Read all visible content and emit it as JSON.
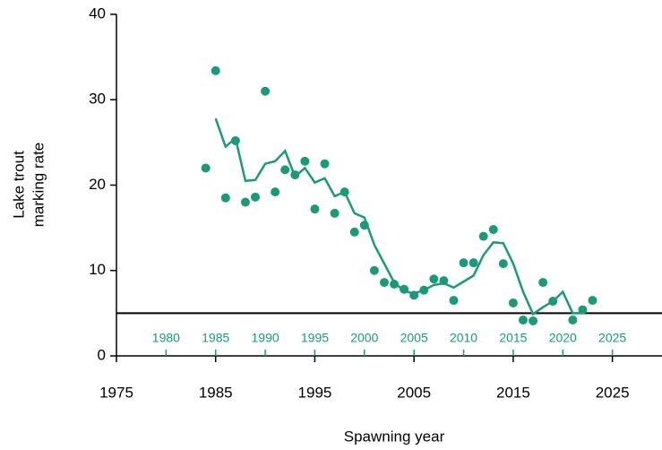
{
  "chart_data": {
    "type": "scatter",
    "xlabel": "Spawning year",
    "ylabel": [
      "Lake trout",
      "marking rate"
    ],
    "xlim": [
      1975,
      2030
    ],
    "ylim": [
      0,
      40
    ],
    "xticks": [
      1975,
      1985,
      1995,
      2005,
      2015,
      2025
    ],
    "xticks_minor": [
      1980,
      1985,
      1990,
      1995,
      2000,
      2005,
      2010,
      2015,
      2020,
      2025
    ],
    "xticks_minor_color": "#1a9a78",
    "yticks": [
      0,
      10,
      20,
      30,
      40
    ],
    "reference_line": 5,
    "series": [
      {
        "type": "scatter",
        "color": "#1a9a78",
        "x": [
          1984,
          1985,
          1986,
          1987,
          1988,
          1989,
          1990,
          1991,
          1992,
          1993,
          1994,
          1995,
          1996,
          1997,
          1998,
          1999,
          2000,
          2001,
          2002,
          2003,
          2004,
          2005,
          2006,
          2007,
          2008,
          2009,
          2010,
          2011,
          2012,
          2013,
          2014,
          2015,
          2016,
          2017,
          2018,
          2019,
          2021,
          2022,
          2023
        ],
        "values": [
          22.0,
          33.4,
          18.5,
          25.2,
          18.0,
          18.6,
          31.0,
          19.2,
          21.8,
          21.2,
          22.8,
          17.2,
          22.5,
          16.7,
          19.2,
          14.5,
          15.3,
          10.0,
          8.6,
          8.4,
          7.8,
          7.1,
          7.7,
          9.0,
          8.8,
          6.5,
          10.9,
          10.9,
          14.0,
          14.8,
          10.8,
          6.2,
          4.2,
          4.1,
          8.6,
          6.4,
          4.2,
          5.4,
          6.5
        ]
      },
      {
        "type": "line",
        "color": "#1a9a78",
        "x": [
          1985,
          1986,
          1987,
          1988,
          1989,
          1990,
          1991,
          1992,
          1993,
          1994,
          1995,
          1996,
          1997,
          1998,
          1999,
          2000,
          2001,
          2002,
          2003,
          2004,
          2005,
          2006,
          2007,
          2008,
          2009,
          2010,
          2011,
          2012,
          2013,
          2014,
          2015,
          2016,
          2017,
          2018,
          2019,
          2020,
          2021,
          2022
        ],
        "values": [
          27.8,
          24.5,
          25.5,
          20.5,
          20.6,
          22.5,
          22.8,
          24.0,
          21.0,
          22.0,
          20.3,
          20.8,
          18.7,
          19.2,
          16.7,
          16.2,
          13.0,
          10.8,
          8.6,
          7.6,
          7.3,
          7.7,
          8.3,
          8.5,
          8.0,
          8.7,
          9.4,
          11.8,
          13.3,
          13.2,
          10.8,
          7.5,
          4.9,
          5.7,
          6.4,
          7.5,
          5.0,
          5.0
        ]
      }
    ]
  }
}
